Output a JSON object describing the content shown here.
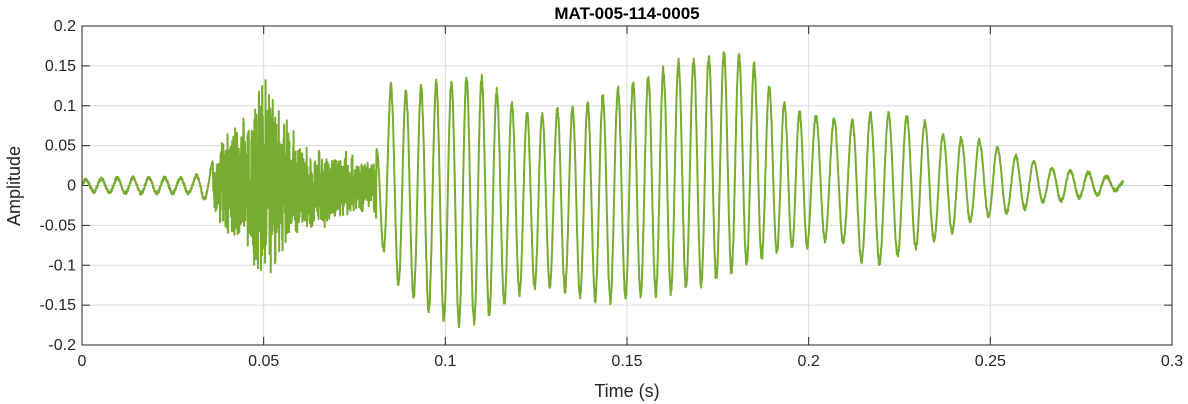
{
  "chart_data": {
    "type": "line",
    "title": "MAT-005-114-0005",
    "xlabel": "Time (s)",
    "ylabel": "Amplitude",
    "xlim": [
      0,
      0.3
    ],
    "ylim": [
      -0.2,
      0.2
    ],
    "x_ticks": [
      0,
      0.05,
      0.1,
      0.15,
      0.2,
      0.25,
      0.3
    ],
    "x_tick_labels": [
      "0",
      "0.05",
      "0.1",
      "0.15",
      "0.2",
      "0.25",
      "0.3"
    ],
    "y_ticks": [
      -0.2,
      -0.15,
      -0.1,
      -0.05,
      0,
      0.05,
      0.1,
      0.15,
      0.2
    ],
    "y_tick_labels": [
      "-0.2",
      "-0.15",
      "-0.1",
      "-0.05",
      "0",
      "0.05",
      "0.1",
      "0.15",
      "0.2"
    ],
    "grid": true,
    "line_color": "#77ac30",
    "series": [
      {
        "x": [
          0,
          0.01,
          0.02,
          0.03,
          0.035,
          0.04,
          0.045,
          0.05,
          0.055,
          0.06,
          0.065,
          0.07,
          0.075,
          0.08,
          0.085,
          0.09,
          0.095,
          0.1,
          0.105,
          0.11,
          0.115,
          0.12,
          0.125,
          0.13,
          0.135,
          0.14,
          0.145,
          0.15,
          0.155,
          0.16,
          0.165,
          0.17,
          0.175,
          0.18,
          0.185,
          0.19,
          0.195,
          0.2,
          0.205,
          0.21,
          0.215,
          0.22,
          0.225,
          0.23,
          0.235,
          0.24,
          0.245,
          0.25,
          0.255,
          0.26,
          0.265,
          0.27,
          0.275,
          0.28,
          0.2865
        ],
        "envelope_max": [
          0.007,
          0.01,
          0.01,
          0.01,
          0.02,
          0.08,
          0.1,
          0.15,
          0.11,
          0.06,
          0.05,
          0.05,
          0.04,
          0.03,
          0.13,
          0.12,
          0.13,
          0.135,
          0.14,
          0.14,
          0.12,
          0.1,
          0.09,
          0.1,
          0.1,
          0.11,
          0.12,
          0.13,
          0.14,
          0.15,
          0.16,
          0.165,
          0.17,
          0.17,
          0.155,
          0.12,
          0.1,
          0.09,
          0.09,
          0.08,
          0.09,
          0.095,
          0.09,
          0.09,
          0.07,
          0.06,
          0.06,
          0.055,
          0.04,
          0.035,
          0.025,
          0.02,
          0.018,
          0.015,
          0.005
        ],
        "envelope_min": [
          -0.007,
          -0.01,
          -0.01,
          -0.01,
          -0.02,
          -0.08,
          -0.09,
          -0.14,
          -0.09,
          -0.07,
          -0.06,
          -0.05,
          -0.04,
          -0.03,
          -0.12,
          -0.14,
          -0.16,
          -0.175,
          -0.18,
          -0.175,
          -0.155,
          -0.14,
          -0.13,
          -0.13,
          -0.14,
          -0.145,
          -0.15,
          -0.145,
          -0.14,
          -0.14,
          -0.135,
          -0.13,
          -0.12,
          -0.11,
          -0.1,
          -0.09,
          -0.08,
          -0.08,
          -0.07,
          -0.075,
          -0.1,
          -0.1,
          -0.09,
          -0.08,
          -0.07,
          -0.06,
          -0.045,
          -0.04,
          -0.035,
          -0.03,
          -0.02,
          -0.02,
          -0.015,
          -0.012,
          -0.004
        ]
      }
    ]
  }
}
